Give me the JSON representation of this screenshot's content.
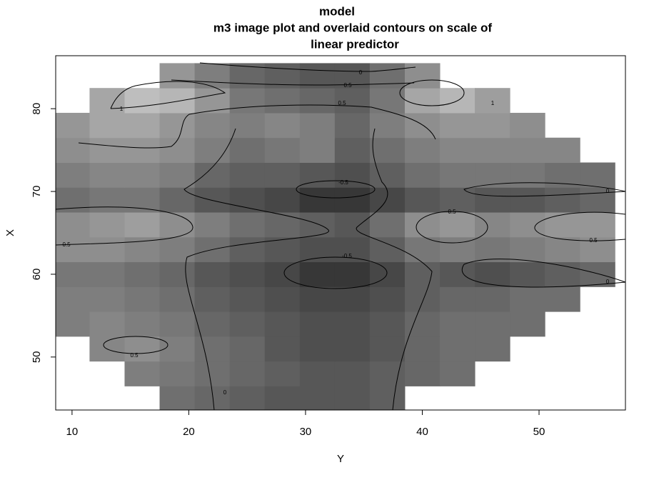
{
  "chart_data": {
    "type": "heatmap",
    "title": [
      "model",
      "m3 image plot and overlaid contours on scale of",
      "linear predictor"
    ],
    "x_label": "Y",
    "y_label": "X",
    "xlim": [
      8.6,
      57.4
    ],
    "ylim": [
      43.6,
      86.4
    ],
    "xticks": [
      10,
      20,
      30,
      40,
      50
    ],
    "yticks": [
      50,
      60,
      70,
      80
    ],
    "x_centers": [
      10,
      13,
      16,
      19,
      22,
      25,
      28,
      31,
      34,
      37,
      40,
      43,
      46,
      49,
      52,
      55
    ],
    "y_centers": [
      45,
      48,
      51,
      54,
      57,
      60,
      63,
      66,
      69,
      72,
      75,
      78,
      81,
      84
    ],
    "z": [
      [
        null,
        null,
        null,
        0.1,
        0.0,
        -0.1,
        -0.2,
        -0.2,
        -0.2,
        -0.1,
        null,
        null,
        null,
        null,
        null,
        null
      ],
      [
        null,
        null,
        0.3,
        0.2,
        0.1,
        0.0,
        -0.1,
        -0.2,
        -0.2,
        -0.1,
        0.0,
        0.1,
        null,
        null,
        null,
        null
      ],
      [
        null,
        0.4,
        0.5,
        0.3,
        0.1,
        0.0,
        -0.2,
        -0.3,
        -0.3,
        -0.2,
        0.0,
        0.1,
        0.1,
        null,
        null,
        null
      ],
      [
        0.3,
        0.4,
        0.3,
        0.2,
        0.0,
        -0.1,
        -0.2,
        -0.3,
        -0.3,
        -0.2,
        0.0,
        0.1,
        0.1,
        0.1,
        null,
        null
      ],
      [
        0.3,
        0.3,
        0.2,
        0.1,
        -0.1,
        -0.2,
        -0.3,
        -0.4,
        -0.4,
        -0.3,
        -0.1,
        0.0,
        0.0,
        0.1,
        0.1,
        null
      ],
      [
        0.2,
        0.2,
        0.1,
        0.0,
        -0.2,
        -0.3,
        -0.4,
        -0.6,
        -0.6,
        -0.4,
        -0.1,
        -0.2,
        -0.3,
        -0.2,
        -0.1,
        0.0
      ],
      [
        0.5,
        0.5,
        0.4,
        0.3,
        0.1,
        -0.1,
        -0.2,
        -0.3,
        -0.3,
        -0.1,
        0.2,
        0.3,
        0.2,
        0.3,
        0.4,
        0.5
      ],
      [
        0.5,
        0.6,
        0.7,
        0.5,
        0.3,
        0.1,
        0.0,
        -0.1,
        -0.2,
        0.1,
        0.5,
        0.6,
        0.4,
        0.5,
        0.6,
        0.6
      ],
      [
        0.1,
        0.2,
        0.2,
        0.0,
        -0.2,
        -0.3,
        -0.4,
        -0.6,
        -0.6,
        -0.4,
        -0.2,
        -0.1,
        -0.2,
        -0.2,
        -0.1,
        0.0
      ],
      [
        0.3,
        0.4,
        0.4,
        0.3,
        0.0,
        -0.1,
        -0.1,
        -0.2,
        -0.3,
        -0.1,
        0.1,
        0.2,
        0.2,
        0.2,
        0.1,
        0.1
      ],
      [
        0.5,
        0.6,
        0.6,
        0.5,
        0.3,
        0.1,
        0.2,
        0.3,
        -0.1,
        0.1,
        0.3,
        0.4,
        0.4,
        0.4,
        0.4,
        null
      ],
      [
        0.6,
        0.8,
        0.8,
        0.6,
        0.4,
        0.3,
        0.4,
        0.3,
        0.0,
        0.3,
        0.5,
        0.6,
        0.6,
        0.5,
        null,
        null
      ],
      [
        null,
        0.8,
        1.1,
        1.0,
        0.6,
        0.2,
        0.1,
        0.0,
        -0.1,
        0.2,
        0.8,
        1.0,
        0.7,
        null,
        null,
        null
      ],
      [
        null,
        null,
        null,
        0.6,
        0.3,
        0.0,
        -0.1,
        -0.2,
        -0.2,
        0.1,
        0.5,
        null,
        null,
        null,
        null,
        null
      ]
    ],
    "contour_levels": [
      -0.5,
      0,
      0.5,
      1
    ]
  }
}
